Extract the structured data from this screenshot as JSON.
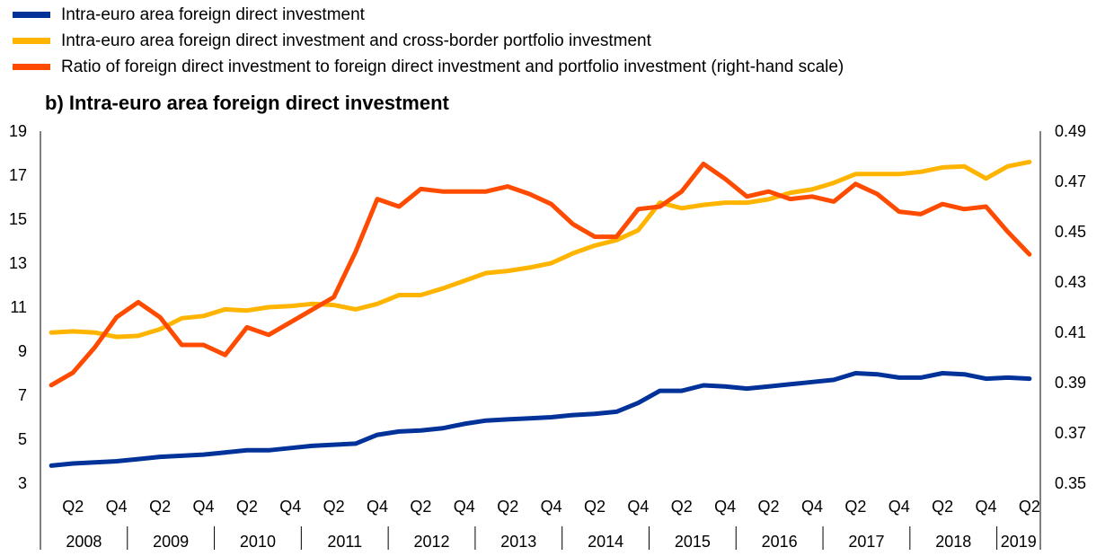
{
  "chart_data": {
    "type": "line",
    "title": "b) Intra-euro area foreign direct investment",
    "legend_position": "top-left",
    "grid": false,
    "x": [
      "Q1 2008",
      "Q2 2008",
      "Q3 2008",
      "Q4 2008",
      "Q1 2009",
      "Q2 2009",
      "Q3 2009",
      "Q4 2009",
      "Q1 2010",
      "Q2 2010",
      "Q3 2010",
      "Q4 2010",
      "Q1 2011",
      "Q2 2011",
      "Q3 2011",
      "Q4 2011",
      "Q1 2012",
      "Q2 2012",
      "Q3 2012",
      "Q4 2012",
      "Q1 2013",
      "Q2 2013",
      "Q3 2013",
      "Q4 2013",
      "Q1 2014",
      "Q2 2014",
      "Q3 2014",
      "Q4 2014",
      "Q1 2015",
      "Q2 2015",
      "Q3 2015",
      "Q4 2015",
      "Q1 2016",
      "Q2 2016",
      "Q3 2016",
      "Q4 2016",
      "Q1 2017",
      "Q2 2017",
      "Q3 2017",
      "Q4 2017",
      "Q1 2018",
      "Q2 2018",
      "Q3 2018",
      "Q4 2018",
      "Q1 2019",
      "Q2 2019"
    ],
    "quarter_ticks": [
      "Q2",
      "Q4"
    ],
    "years": [
      "2008",
      "2009",
      "2010",
      "2011",
      "2012",
      "2013",
      "2014",
      "2015",
      "2016",
      "2017",
      "2018",
      "2019"
    ],
    "left_axis": {
      "ylim": [
        3,
        19
      ],
      "ticks": [
        "3",
        "5",
        "7",
        "9",
        "11",
        "13",
        "15",
        "17",
        "19"
      ]
    },
    "right_axis": {
      "ylim": [
        0.35,
        0.49
      ],
      "ticks": [
        "0.35",
        "0.37",
        "0.39",
        "0.41",
        "0.43",
        "0.45",
        "0.47",
        "0.49"
      ]
    },
    "series": [
      {
        "name": "Intra-euro area foreign direct investment",
        "axis": "left",
        "color": "#003299",
        "values": [
          3.8,
          3.9,
          3.95,
          4.0,
          4.1,
          4.2,
          4.25,
          4.3,
          4.4,
          4.5,
          4.5,
          4.6,
          4.7,
          4.75,
          4.8,
          5.2,
          5.35,
          5.4,
          5.5,
          5.7,
          5.85,
          5.9,
          5.95,
          6.0,
          6.1,
          6.15,
          6.25,
          6.65,
          7.2,
          7.2,
          7.45,
          7.4,
          7.3,
          7.4,
          7.5,
          7.6,
          7.7,
          8.0,
          7.95,
          7.8,
          7.8,
          8.0,
          7.95,
          7.75,
          7.8,
          7.75
        ]
      },
      {
        "name": "Intra-euro area foreign direct investment and cross-border portfolio investment",
        "axis": "left",
        "color": "#FFB400",
        "values": [
          9.85,
          9.9,
          9.85,
          9.65,
          9.7,
          10.0,
          10.5,
          10.6,
          10.9,
          10.85,
          11.0,
          11.05,
          11.15,
          11.1,
          10.9,
          11.15,
          11.55,
          11.55,
          11.85,
          12.2,
          12.55,
          12.65,
          12.8,
          13.0,
          13.45,
          13.8,
          14.05,
          14.5,
          15.75,
          15.5,
          15.65,
          15.75,
          15.75,
          15.9,
          16.2,
          16.35,
          16.65,
          17.05,
          17.05,
          17.05,
          17.15,
          17.35,
          17.4,
          16.85,
          17.4,
          17.6
        ]
      },
      {
        "name": "Ratio of foreign direct investment to foreign direct investment and portfolio investment (right-hand scale)",
        "axis": "right",
        "color": "#FF4B00",
        "values": [
          0.389,
          0.394,
          0.404,
          0.416,
          0.422,
          0.416,
          0.405,
          0.405,
          0.401,
          0.412,
          0.409,
          0.414,
          0.419,
          0.424,
          0.442,
          0.463,
          0.46,
          0.467,
          0.466,
          0.466,
          0.466,
          0.468,
          0.465,
          0.461,
          0.453,
          0.448,
          0.448,
          0.459,
          0.46,
          0.466,
          0.477,
          0.471,
          0.464,
          0.466,
          0.463,
          0.464,
          0.462,
          0.469,
          0.465,
          0.458,
          0.457,
          0.461,
          0.459,
          0.46,
          0.45,
          0.441
        ]
      }
    ]
  }
}
